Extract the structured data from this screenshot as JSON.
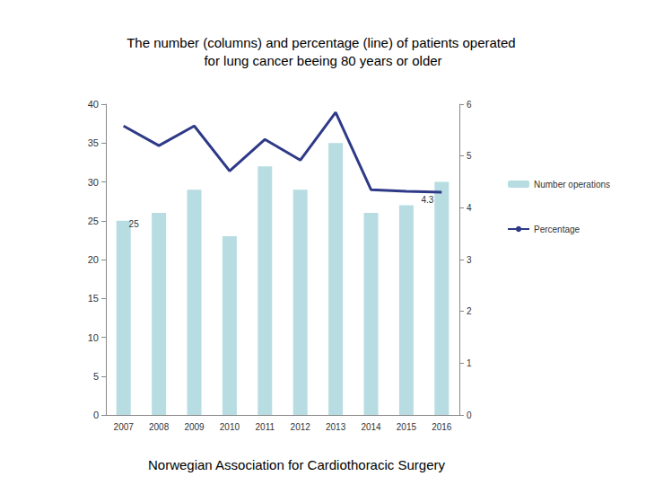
{
  "chart_data": {
    "type": "bar",
    "title": "The number (columns) and percentage (line) of patients operated for lung cancer beeing 80 years or older",
    "footer": "Norwegian Association for Cardiothoracic Surgery",
    "categories": [
      "2007",
      "2008",
      "2009",
      "2010",
      "2011",
      "2012",
      "2013",
      "2014",
      "2015",
      "2016"
    ],
    "series": [
      {
        "name": "Number operations",
        "type": "bar",
        "color": "#b7dde2",
        "values": [
          25,
          26,
          29,
          23,
          32,
          29,
          35,
          26,
          27,
          30
        ]
      },
      {
        "name": "Percentage",
        "type": "line",
        "axis": "y2",
        "color": "#2e3a87",
        "values": [
          5.58,
          5.2,
          5.58,
          4.71,
          5.32,
          4.92,
          5.84,
          4.35,
          4.32,
          4.3
        ]
      }
    ],
    "annotations": [
      {
        "series": "Number operations",
        "category": "2007",
        "text": "25"
      },
      {
        "series": "Percentage",
        "category": "2016",
        "text": "4.3"
      }
    ],
    "ylim": [
      0,
      40
    ],
    "yticks": [
      0,
      5,
      10,
      15,
      20,
      25,
      30,
      35,
      40
    ],
    "y2lim": [
      0,
      6
    ],
    "y2ticks": [
      0,
      1,
      2,
      3,
      4,
      5,
      6
    ],
    "grid": false,
    "legend": "right"
  }
}
